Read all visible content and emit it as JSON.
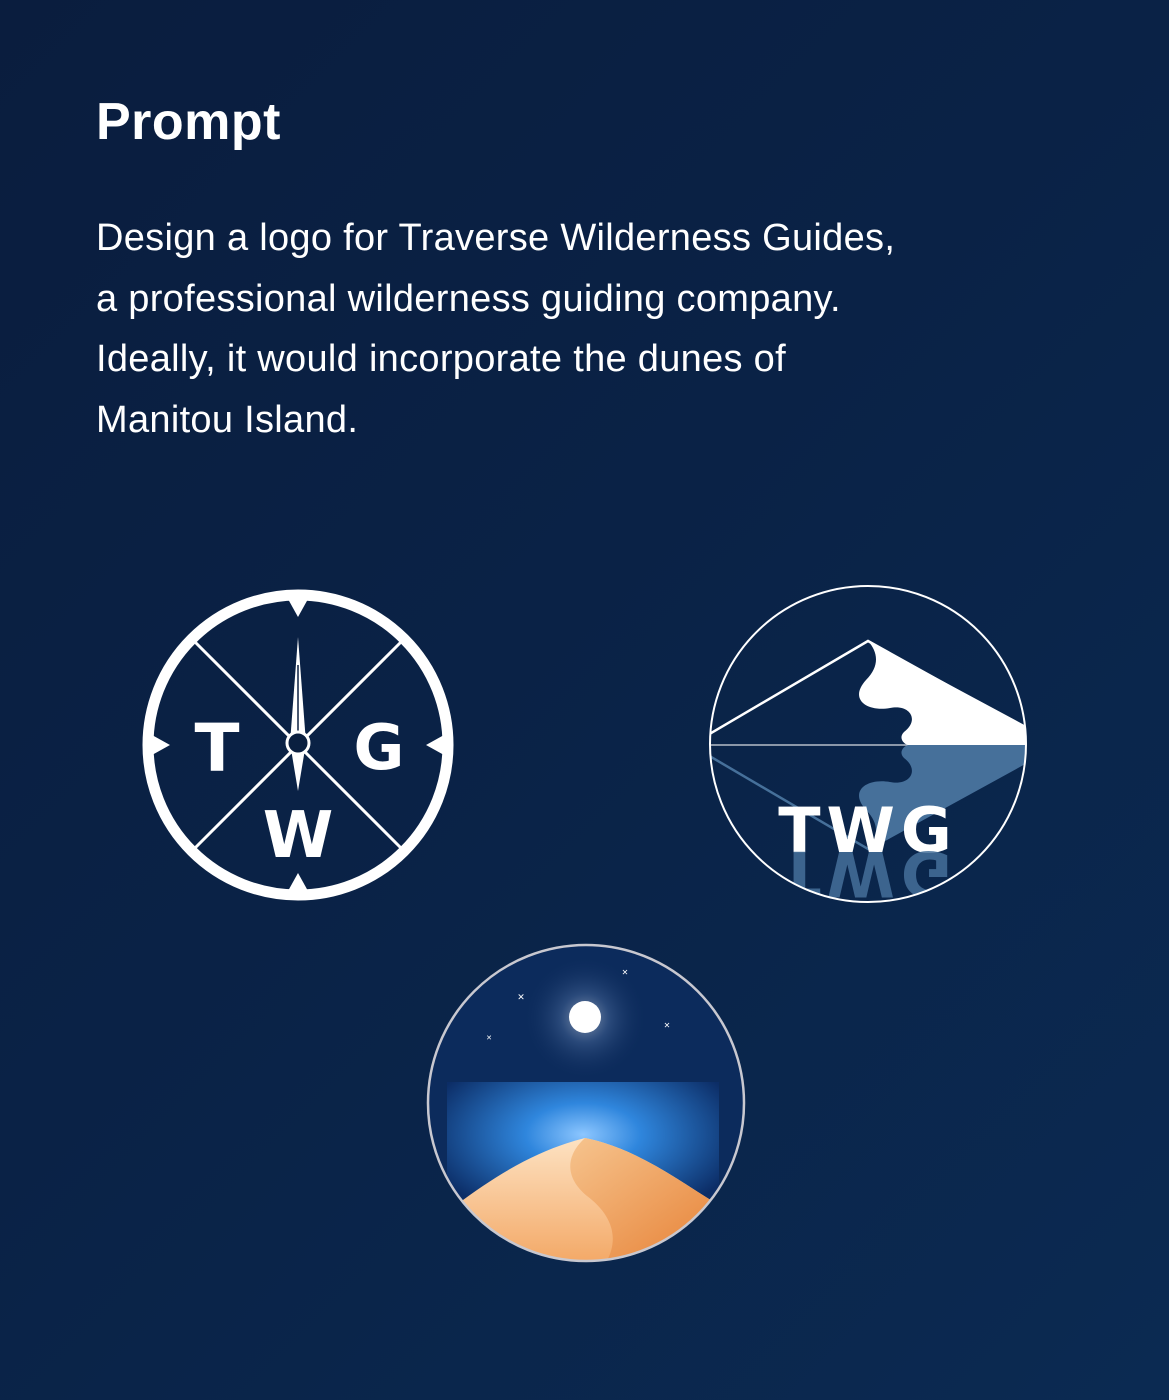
{
  "heading": "Prompt",
  "prompt": {
    "lines": [
      "Design a logo for Traverse Wilderness Guides,",
      "a professional wilderness guiding company.",
      "Ideally, it would incorporate the dunes of",
      "Manitou Island."
    ]
  },
  "logos": {
    "compass": {
      "letters": {
        "top_left": "T",
        "top_right": "G",
        "bottom": "W"
      },
      "colors": {
        "stroke": "#ffffff",
        "background": "#0a1f40"
      }
    },
    "mountain": {
      "wordmark": "TWG",
      "colors": {
        "outline": "#ffffff",
        "water": "#46709a",
        "snow": "#ffffff"
      }
    },
    "night_dune": {
      "colors": {
        "sky": "#0c2b5c",
        "water_glow": "#3a8fe0",
        "dune_light": "#f8d0a4",
        "dune_dark": "#ec8a40",
        "moon": "#ffffff",
        "ring": "#c8c8d0"
      }
    }
  }
}
